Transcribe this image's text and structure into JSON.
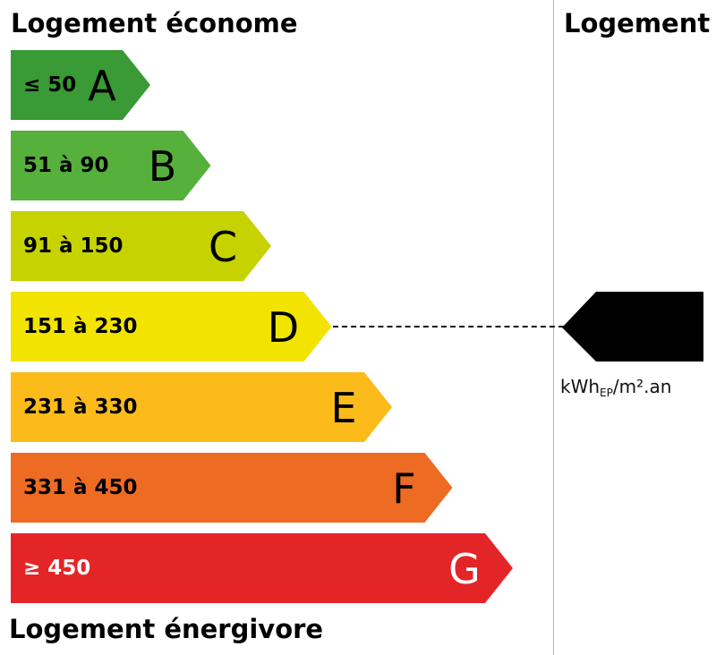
{
  "header": {
    "top_label": "Logement économe",
    "bottom_label": "Logement énergivore",
    "column_label": "Logement"
  },
  "classes": [
    {
      "range": "≤ 50",
      "letter": "A",
      "fill": "#3a9a35",
      "text_color": "#000000"
    },
    {
      "range": "51 à 90",
      "letter": "B",
      "fill": "#55b03c",
      "text_color": "#000000"
    },
    {
      "range": "91 à 150",
      "letter": "C",
      "fill": "#c6d300",
      "text_color": "#000000"
    },
    {
      "range": "151 à 230",
      "letter": "D",
      "fill": "#f2e400",
      "text_color": "#000000"
    },
    {
      "range": "231 à 330",
      "letter": "E",
      "fill": "#fbbb1a",
      "text_color": "#000000"
    },
    {
      "range": "331 à 450",
      "letter": "F",
      "fill": "#ed6b22",
      "text_color": "#000000"
    },
    {
      "range": "≥ 450",
      "letter": "G",
      "fill": "#e42528",
      "text_color": "#ffffff"
    }
  ],
  "indicator": {
    "selected_class": "D",
    "value": "",
    "unit_main": "kWh",
    "unit_sub": "EP",
    "unit_rest": "/m².an",
    "marker_color": "#000000"
  }
}
